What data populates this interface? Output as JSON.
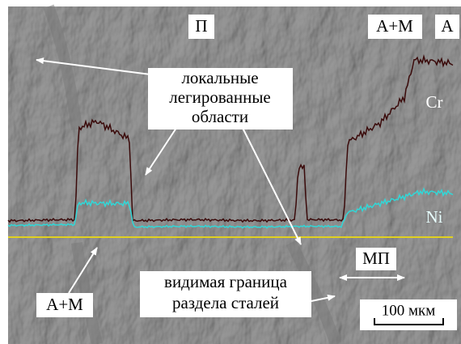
{
  "labels": {
    "top_phase_p": "П",
    "top_phase_am": "А+М",
    "top_phase_a": "А",
    "local_regions": [
      "локальные",
      "легированные",
      "области"
    ],
    "cr": "Cr",
    "ni": "Ni",
    "bottom_phase_am": "А+М",
    "boundary": [
      "видимая граница",
      "раздела сталей"
    ],
    "mp": "МП",
    "scale": "100 мкм"
  }
}
